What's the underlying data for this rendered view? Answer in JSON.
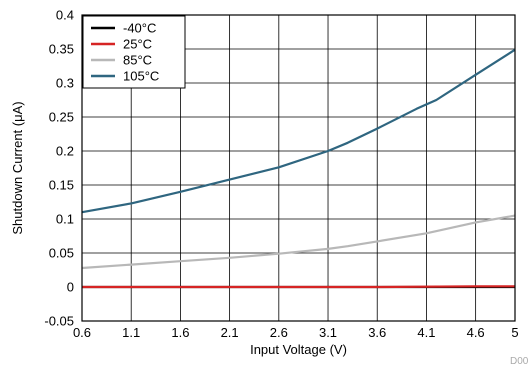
{
  "chart_data": {
    "type": "line",
    "title": "",
    "xlabel": "Input Voltage (V)",
    "ylabel": "Shutdown Current (μA)",
    "xlim": [
      0.6,
      5
    ],
    "ylim": [
      -0.05,
      0.4
    ],
    "x_ticks": [
      "0.6",
      "1.1",
      "1.6",
      "2.1",
      "2.6",
      "3.1",
      "3.6",
      "4.1",
      "4.6",
      "5"
    ],
    "x_tick_values": [
      0.6,
      1.1,
      1.6,
      2.1,
      2.6,
      3.1,
      3.6,
      4.1,
      4.6,
      5
    ],
    "y_ticks": [
      "-0.05",
      "0",
      "0.05",
      "0.1",
      "0.15",
      "0.2",
      "0.25",
      "0.3",
      "0.35",
      "0.4"
    ],
    "y_tick_values": [
      -0.05,
      0,
      0.05,
      0.1,
      0.15,
      0.2,
      0.25,
      0.3,
      0.35,
      0.4
    ],
    "grid": true,
    "legend_position": "top-left",
    "series": [
      {
        "name": "-40°C",
        "color": "#000000",
        "x": [
          0.6,
          1.6,
          2.6,
          3.6,
          4.6,
          5.0
        ],
        "y": [
          0.0,
          0.0,
          0.0,
          0.0,
          0.0,
          0.0
        ]
      },
      {
        "name": "25°C",
        "color": "#d62424",
        "x": [
          0.6,
          1.6,
          2.6,
          3.6,
          4.6,
          5.0
        ],
        "y": [
          0.0,
          0.0,
          0.0,
          0.0,
          0.001,
          0.001
        ]
      },
      {
        "name": "85°C",
        "color": "#b8b8b8",
        "x": [
          0.6,
          1.1,
          1.6,
          2.1,
          2.6,
          3.1,
          3.3,
          3.6,
          4.1,
          4.6,
          5.0
        ],
        "y": [
          0.028,
          0.033,
          0.038,
          0.043,
          0.049,
          0.056,
          0.06,
          0.067,
          0.079,
          0.095,
          0.105
        ]
      },
      {
        "name": "105°C",
        "color": "#2f6680",
        "x": [
          0.6,
          1.1,
          1.6,
          2.1,
          2.6,
          3.1,
          3.3,
          3.6,
          4.0,
          4.2,
          4.6,
          5.0
        ],
        "y": [
          0.11,
          0.123,
          0.14,
          0.158,
          0.176,
          0.2,
          0.212,
          0.233,
          0.262,
          0.275,
          0.312,
          0.349
        ]
      }
    ],
    "corner_code": "D00"
  }
}
